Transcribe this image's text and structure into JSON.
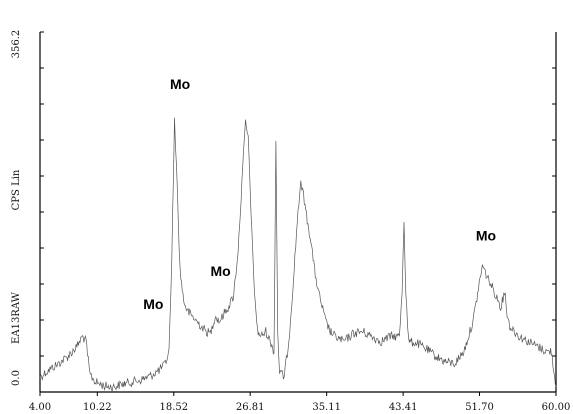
{
  "chart_data": {
    "type": "line",
    "title": "",
    "xlabel": "",
    "ylabel": "CPS Lin",
    "file_label": "EA13RAW",
    "xlim": [
      4.0,
      60.0
    ],
    "ylim": [
      0.0,
      356.2
    ],
    "x_ticks": [
      "4.00",
      "10.22",
      "18.52",
      "26.81",
      "35.11",
      "43.41",
      "51.70",
      "60.00"
    ],
    "y_ticks": [
      "0.0",
      "356.2"
    ],
    "grid": false,
    "legend": "none",
    "line_color": "#555555",
    "annotations": [
      {
        "text": "Mo",
        "x": 16.3,
        "y": 82
      },
      {
        "text": "Mo",
        "x": 23.6,
        "y": 115
      },
      {
        "text": "Mo",
        "x": 19.2,
        "y": 300
      },
      {
        "text": "Mo",
        "x": 52.4,
        "y": 150
      }
    ],
    "series": [
      {
        "x": [
          4.0,
          5.0,
          6.0,
          7.0,
          8.0,
          8.6,
          9.0,
          9.4,
          10.0,
          11.0,
          12.0,
          13.0,
          14.0,
          15.0,
          16.0,
          17.0,
          17.6,
          18.0,
          18.3,
          18.6,
          18.9,
          19.2,
          19.6,
          20.0,
          21.0,
          22.0,
          22.5,
          23.0,
          23.5,
          24.0,
          24.5,
          25.0,
          25.5,
          26.0,
          26.3,
          26.6,
          26.9,
          27.2,
          27.6,
          28.0,
          28.5,
          29.0,
          29.4,
          29.6,
          29.8,
          30.0,
          30.5,
          31.0,
          31.5,
          32.0,
          32.3,
          32.6,
          33.0,
          33.4,
          33.8,
          34.2,
          34.6,
          35.0,
          35.5,
          36.0,
          37.0,
          38.0,
          39.0,
          40.0,
          41.0,
          42.0,
          43.0,
          43.3,
          43.5,
          43.7,
          44.0,
          45.0,
          46.0,
          47.0,
          48.0,
          49.0,
          50.0,
          51.0,
          52.0,
          52.5,
          53.0,
          53.5,
          54.0,
          54.5,
          54.7,
          55.0,
          56.0,
          57.0,
          58.0,
          59.0,
          59.5,
          60.0
        ],
        "y": [
          15,
          22,
          28,
          35,
          45,
          55,
          50,
          18,
          10,
          6,
          5,
          8,
          10,
          12,
          16,
          22,
          28,
          40,
          130,
          270,
          200,
          120,
          90,
          80,
          70,
          60,
          58,
          75,
          70,
          78,
          85,
          95,
          140,
          220,
          268,
          250,
          180,
          110,
          60,
          55,
          60,
          50,
          40,
          250,
          60,
          20,
          15,
          50,
          110,
          180,
          205,
          195,
          170,
          150,
          120,
          100,
          85,
          70,
          60,
          55,
          50,
          58,
          60,
          55,
          50,
          55,
          55,
          100,
          170,
          100,
          50,
          48,
          42,
          35,
          30,
          28,
          40,
          70,
          125,
          115,
          105,
          95,
          85,
          100,
          75,
          65,
          55,
          50,
          45,
          40,
          40,
          5
        ]
      }
    ]
  }
}
